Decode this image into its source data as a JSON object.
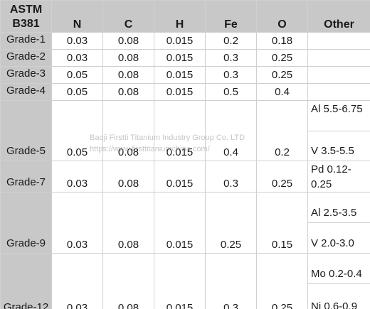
{
  "header": {
    "first": [
      "ASTM",
      "B381"
    ],
    "columns": [
      "N",
      "C",
      "H",
      "Fe",
      "O",
      "Other"
    ]
  },
  "rows": {
    "g1": {
      "grade": "Grade-1",
      "n": "0.03",
      "c": "0.08",
      "h": "0.015",
      "fe": "0.2",
      "o": "0.18"
    },
    "g2": {
      "grade": "Grade-2",
      "n": "0.03",
      "c": "0.08",
      "h": "0.015",
      "fe": "0.3",
      "o": "0.25"
    },
    "g3": {
      "grade": "Grade-3",
      "n": "0.05",
      "c": "0.08",
      "h": "0.015",
      "fe": "0.3",
      "o": "0.25"
    },
    "g4": {
      "grade": "Grade-4",
      "n": "0.05",
      "c": "0.08",
      "h": "0.015",
      "fe": "0.5",
      "o": "0.4"
    },
    "g5": {
      "grade": "Grade-5",
      "n": "0.05",
      "c": "0.08",
      "h": "0.015",
      "fe": "0.4",
      "o": "0.2",
      "other": [
        "Al 5.5-6.75",
        "V 3.5-5.5"
      ]
    },
    "g7": {
      "grade": "Grade-7",
      "n": "0.03",
      "c": "0.08",
      "h": "0.015",
      "fe": "0.3",
      "o": "0.25",
      "other": [
        "Pd 0.12-0.25"
      ]
    },
    "g9": {
      "grade": "Grade-9",
      "n": "0.03",
      "c": "0.08",
      "h": "0.015",
      "fe": "0.25",
      "o": "0.15",
      "other": [
        "Al 2.5-3.5",
        "V 2.0-3.0"
      ]
    },
    "g12": {
      "grade": "Grade-12",
      "n": "0.03",
      "c": "0.08",
      "h": "0.015",
      "fe": "0.3",
      "o": "0.25",
      "other": [
        "Mo 0.2-0.4",
        "Ni 0.6-0.9"
      ]
    }
  },
  "watermark": {
    "line1": "Baoji Firstti Titanium Industry Group Co. LTD",
    "line2": "https://www.firsttitaniumchina.com/"
  },
  "colors": {
    "header_bg": "#c8c8c8",
    "border": "#d0d0d0",
    "text": "#1a1a1a"
  }
}
